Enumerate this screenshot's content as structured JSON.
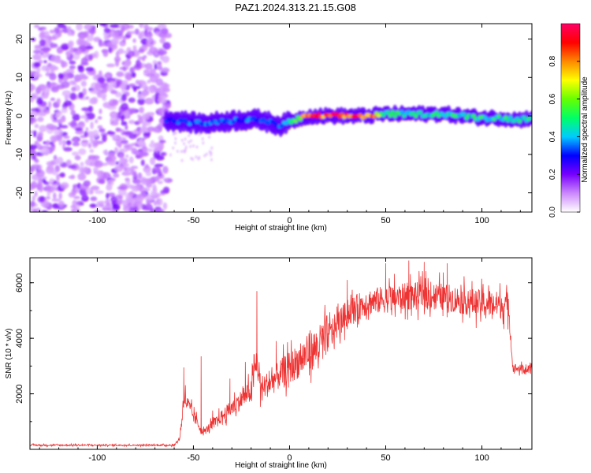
{
  "title": "PAZ1.2024.313.21.15.G08",
  "chart_data": [
    {
      "type": "heatmap",
      "xlabel": "Height of straight line (km)",
      "ylabel": "Frequency (Hz)",
      "xlim": [
        -135,
        126
      ],
      "ylim": [
        -25,
        24
      ],
      "xticks": [
        -100,
        -50,
        0,
        50,
        100
      ],
      "yticks": [
        -20,
        -10,
        0,
        10,
        20
      ],
      "colorbar": {
        "label": "Normalized spectral amplitude",
        "range": [
          0,
          1
        ],
        "ticks": [
          0,
          0.2,
          0.4,
          0.6,
          0.8
        ],
        "colormap": [
          "#ffffff",
          "#cc88ff",
          "#7700ff",
          "#0000ff",
          "#00ccff",
          "#00ff66",
          "#66ff00",
          "#ffff00",
          "#ff8800",
          "#ff0000",
          "#ff0066"
        ]
      },
      "ridge": {
        "x": [
          -65,
          -55,
          -45,
          -35,
          -25,
          -15,
          -5,
          0,
          10,
          20,
          30,
          40,
          50,
          60,
          70,
          80,
          90,
          100,
          110,
          120,
          125
        ],
        "freq": [
          -1,
          -1.5,
          -2,
          -1.5,
          -1,
          -1,
          -2.5,
          -1.5,
          0,
          0,
          0,
          0,
          0.5,
          0.5,
          0.5,
          0.5,
          0,
          -0.5,
          -0.5,
          -1,
          -0.5
        ],
        "amplitude": [
          0.3,
          0.35,
          0.35,
          0.35,
          0.35,
          0.35,
          0.35,
          0.45,
          0.95,
          0.95,
          0.95,
          0.9,
          0.55,
          0.5,
          0.5,
          0.5,
          0.5,
          0.5,
          0.5,
          0.5,
          0.5
        ]
      },
      "noise_region": {
        "x_range": [
          -135,
          -63
        ],
        "freq_range": [
          -25,
          24
        ],
        "amplitude": 0.12
      }
    },
    {
      "type": "line",
      "xlabel": "Height of straight line (km)",
      "ylabel": "SNR (10 * v/v)",
      "xlim": [
        -135,
        126
      ],
      "ylim": [
        0,
        6900
      ],
      "xticks": [
        -100,
        -50,
        0,
        50,
        100
      ],
      "yticks": [
        2000,
        4000,
        6000
      ],
      "color": "#ee3333",
      "series": [
        {
          "x": [
            -135,
            -60,
            -57,
            -55,
            -50,
            -45,
            -40,
            -35,
            -30,
            -25,
            -20,
            -17,
            -15,
            -10,
            -5,
            0,
            5,
            10,
            15,
            20,
            25,
            30,
            40,
            50,
            60,
            70,
            80,
            90,
            100,
            110,
            114,
            116,
            120,
            126
          ],
          "values": [
            150,
            150,
            400,
            1900,
            1200,
            600,
            900,
            1200,
            1500,
            1800,
            2100,
            3200,
            2200,
            2400,
            2700,
            2950,
            3200,
            3500,
            3700,
            4100,
            4500,
            4900,
            5300,
            5400,
            5500,
            5550,
            5500,
            5350,
            5250,
            5200,
            5200,
            2950,
            2900,
            2850
          ],
          "spikes": [
            [
              -55,
              2950
            ],
            [
              -46,
              3350
            ],
            [
              -40,
              1400
            ],
            [
              -31,
              2550
            ],
            [
              -23,
              3150
            ],
            [
              -17,
              5700
            ],
            [
              -7,
              3900
            ],
            [
              30,
              6100
            ],
            [
              50,
              6700
            ],
            [
              62,
              6800
            ],
            [
              70,
              6750
            ],
            [
              82,
              6700
            ]
          ]
        }
      ]
    }
  ]
}
